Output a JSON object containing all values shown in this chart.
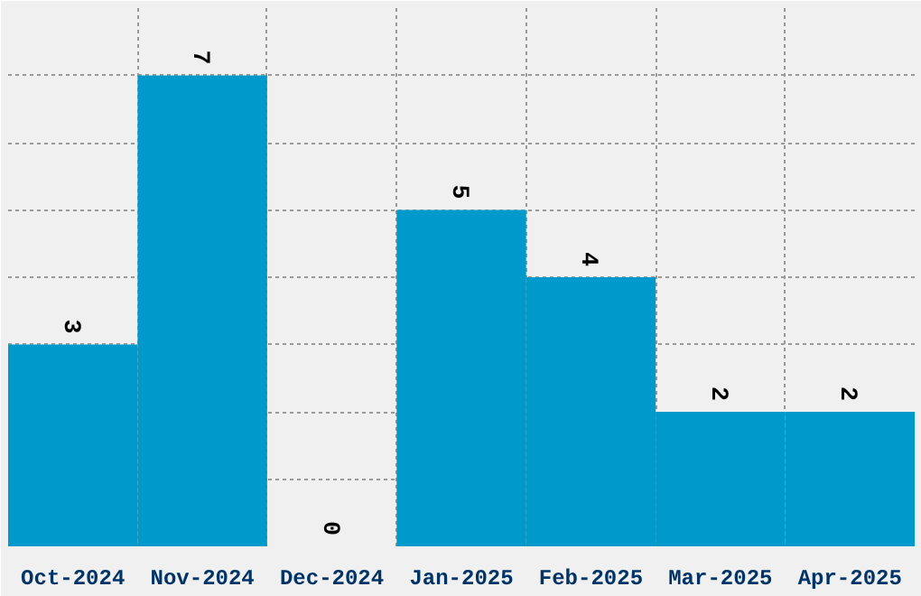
{
  "chart_data": {
    "type": "bar",
    "categories": [
      "Oct-2024",
      "Nov-2024",
      "Dec-2024",
      "Jan-2025",
      "Feb-2025",
      "Mar-2025",
      "Apr-2025"
    ],
    "values": [
      3,
      7,
      0,
      5,
      4,
      2,
      2
    ],
    "color": "#0099cc",
    "data_labels": true,
    "ylim": [
      0,
      8
    ],
    "tick_labels": "x",
    "grid": true
  }
}
